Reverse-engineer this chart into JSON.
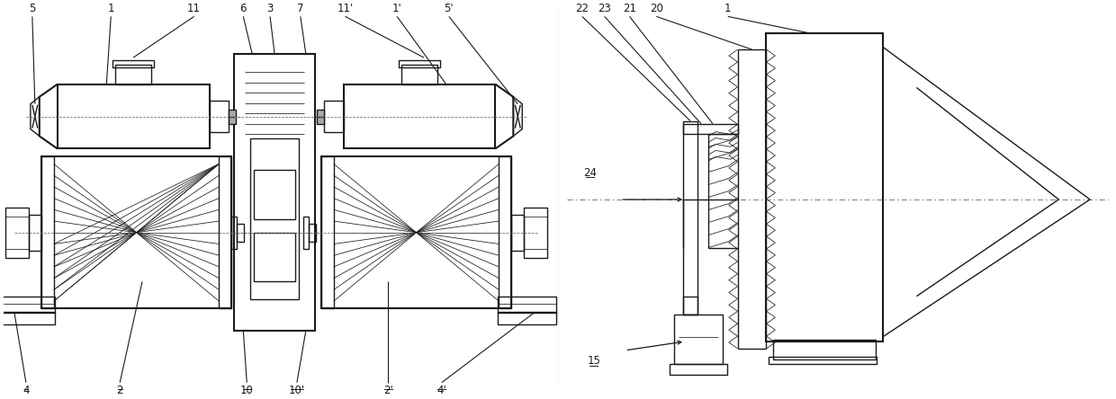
{
  "bg_color": "#ffffff",
  "lc": "#1a1a1a",
  "lw": 1.0,
  "tlw": 0.55,
  "thkw": 1.5,
  "fs": 8.5,
  "fig_w": 12.4,
  "fig_h": 4.44,
  "dpi": 100
}
